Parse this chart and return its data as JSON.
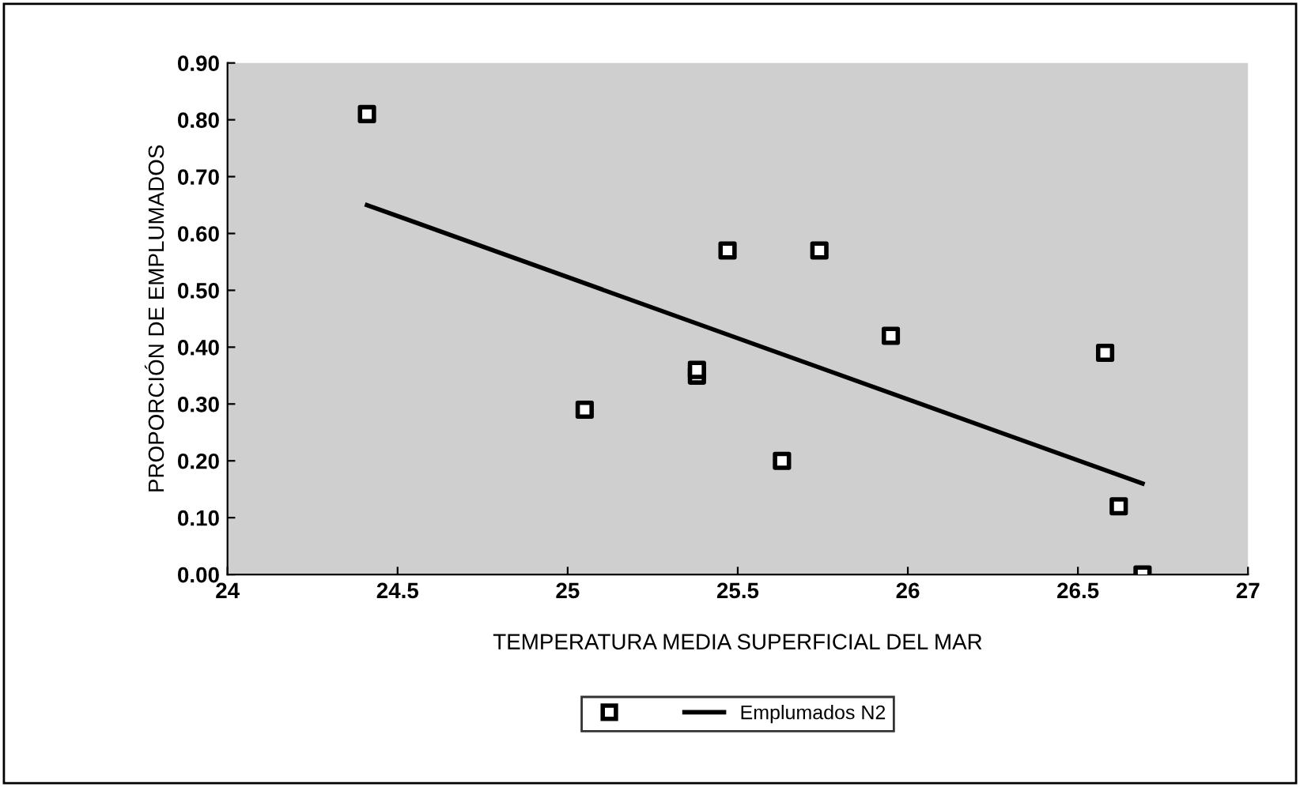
{
  "chart_data": {
    "type": "scatter",
    "xlabel": "TEMPERATURA MEDIA SUPERFICIAL DEL MAR",
    "ylabel": "PROPORCIÓN DE EMPLUMADOS",
    "xlim": [
      24,
      27
    ],
    "xticks": [
      24,
      24.5,
      25,
      25.5,
      26,
      26.5,
      27
    ],
    "ylim": [
      0,
      0.9
    ],
    "yticks": [
      {
        "value": 0,
        "label": "0.00"
      },
      {
        "value": 0.1,
        "label": "0.10"
      },
      {
        "value": 0.2,
        "label": "0.20"
      },
      {
        "value": 0.3,
        "label": "0.30"
      },
      {
        "value": 0.4,
        "label": "0.40"
      },
      {
        "value": 0.5,
        "label": "0.50"
      },
      {
        "value": 0.6,
        "label": "0.60"
      },
      {
        "value": 0.7,
        "label": "0.70"
      },
      {
        "value": 0.8,
        "label": "0.80"
      },
      {
        "value": 0.9,
        "label": "0.90"
      }
    ],
    "grid": false,
    "legend": "bottom",
    "series": [
      {
        "color": "#000000",
        "marker": "square",
        "x": [
          24.41,
          25.05,
          25.38,
          25.38,
          25.47,
          25.63,
          25.74,
          25.95,
          26.58,
          26.62,
          26.69
        ],
        "values": [
          0.81,
          0.29,
          0.35,
          0.36,
          0.57,
          0.2,
          0.57,
          0.42,
          0.39,
          0.12,
          0.0
        ]
      },
      {
        "type": "line",
        "name": "Emplumados N2",
        "color": "#000000",
        "line_style": "solid",
        "x": [
          24.41,
          26.69
        ],
        "values": [
          0.65,
          0.16
        ]
      }
    ]
  }
}
